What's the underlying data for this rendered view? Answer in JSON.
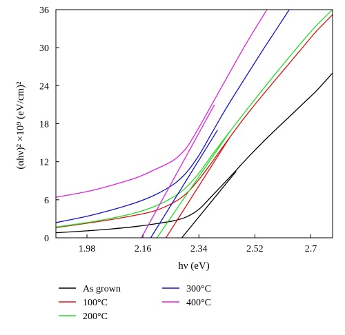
{
  "chart_data": {
    "type": "line",
    "xlabel": "hν (eV)",
    "ylabel": "(αhν)² ×10⁹ (eV/cm)²",
    "xlim": [
      1.88,
      2.77
    ],
    "ylim": [
      0,
      36
    ],
    "xticks": [
      1.98,
      2.16,
      2.34,
      2.52,
      2.7
    ],
    "xtick_labels": [
      "1.98",
      "2.16",
      "2.34",
      "2.52",
      "2.7"
    ],
    "yticks": [
      0,
      6,
      12,
      18,
      24,
      30,
      36
    ],
    "ytick_labels": [
      "0",
      "6",
      "12",
      "18",
      "24",
      "30",
      "36"
    ],
    "legend_position": "below-left",
    "grid": false,
    "series": [
      {
        "name": "As grown",
        "color": "#000000",
        "x": [
          1.88,
          1.98,
          2.06,
          2.14,
          2.2,
          2.26,
          2.3,
          2.34,
          2.38,
          2.44,
          2.5,
          2.56,
          2.62,
          2.68,
          2.72,
          2.77
        ],
        "y": [
          0.8,
          1.1,
          1.4,
          1.8,
          2.2,
          2.7,
          3.3,
          4.5,
          6.5,
          9.6,
          12.8,
          15.8,
          18.6,
          21.4,
          23.3,
          26.0
        ]
      },
      {
        "name": "100°C",
        "color": "#dd1111",
        "x": [
          1.88,
          1.98,
          2.06,
          2.14,
          2.2,
          2.26,
          2.3,
          2.34,
          2.38,
          2.44,
          2.5,
          2.56,
          2.62,
          2.68,
          2.72,
          2.77
        ],
        "y": [
          1.6,
          2.3,
          2.9,
          3.6,
          4.3,
          5.6,
          7.0,
          9.2,
          11.8,
          15.9,
          19.8,
          23.4,
          26.9,
          30.4,
          32.7,
          35.2
        ]
      },
      {
        "name": "200°C",
        "color": "#22dd22",
        "x": [
          1.88,
          1.98,
          2.06,
          2.14,
          2.2,
          2.26,
          2.3,
          2.34,
          2.38,
          2.44,
          2.5,
          2.56,
          2.62,
          2.68,
          2.72,
          2.77
        ],
        "y": [
          1.7,
          2.4,
          3.1,
          4.0,
          5.0,
          6.5,
          8.0,
          10.2,
          12.9,
          16.8,
          20.6,
          24.3,
          27.9,
          31.4,
          33.6,
          36.0
        ]
      },
      {
        "name": "300°C",
        "color": "#1111cc",
        "x": [
          1.88,
          1.98,
          2.06,
          2.14,
          2.2,
          2.26,
          2.3,
          2.34,
          2.38,
          2.42,
          2.46,
          2.5,
          2.54,
          2.58,
          2.62,
          2.66
        ],
        "y": [
          2.4,
          3.4,
          4.4,
          5.6,
          6.8,
          8.5,
          10.3,
          13.0,
          16.4,
          19.8,
          23.0,
          26.1,
          29.2,
          32.2,
          35.2,
          38.2
        ]
      },
      {
        "name": "400°C",
        "color": "#dd22dd",
        "x": [
          1.88,
          1.98,
          2.06,
          2.14,
          2.2,
          2.26,
          2.3,
          2.34,
          2.38,
          2.42,
          2.46,
          2.5,
          2.54,
          2.58,
          2.62
        ],
        "y": [
          6.4,
          7.3,
          8.3,
          9.5,
          10.8,
          12.3,
          14.2,
          17.4,
          20.9,
          24.4,
          27.9,
          31.3,
          34.5,
          37.7,
          40.9
        ]
      }
    ],
    "tangent_lines": [
      {
        "series": "As grown",
        "color": "#000000",
        "x": [
          2.285,
          2.46
        ],
        "y": [
          0,
          10.5
        ]
      },
      {
        "series": "100°C",
        "color": "#dd1111",
        "x": [
          2.234,
          2.44
        ],
        "y": [
          0,
          15.9
        ]
      },
      {
        "series": "200°C",
        "color": "#22dd22",
        "x": [
          2.205,
          2.44
        ],
        "y": [
          0,
          16.8
        ]
      },
      {
        "series": "300°C",
        "color": "#1111cc",
        "x": [
          2.185,
          2.4
        ],
        "y": [
          0,
          17.0
        ]
      },
      {
        "series": "400°C",
        "color": "#dd22dd",
        "x": [
          2.155,
          2.39
        ],
        "y": [
          0,
          21.0
        ]
      }
    ]
  }
}
